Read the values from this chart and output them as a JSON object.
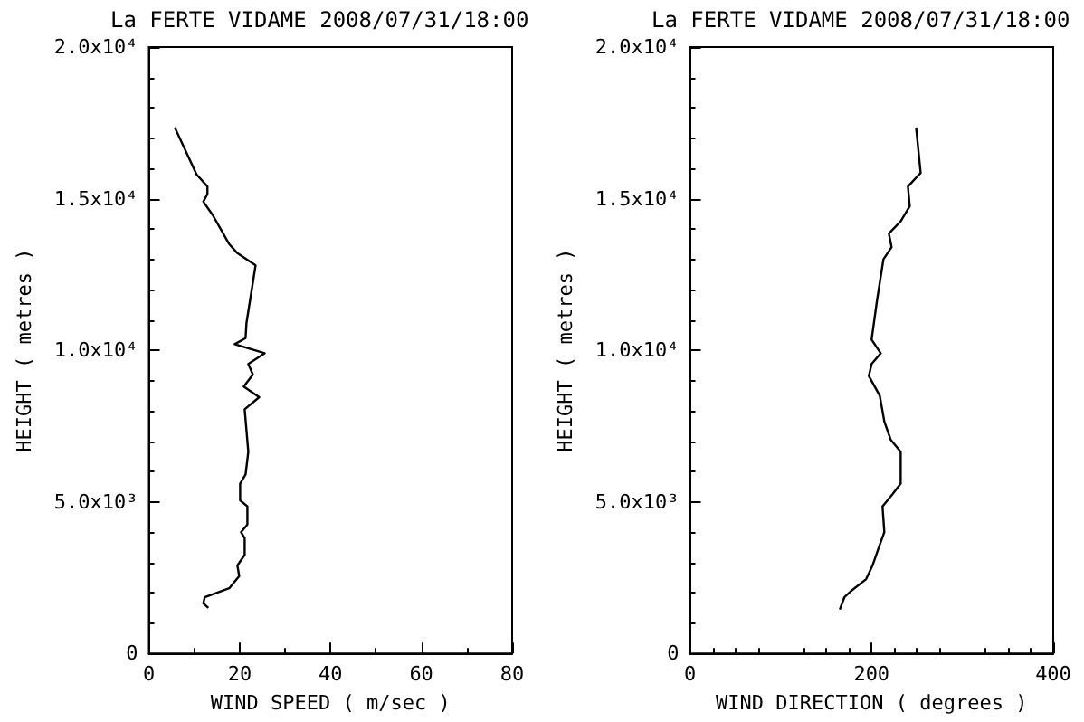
{
  "chart_data": [
    {
      "type": "line",
      "title": "La FERTE VIDAME 2008/07/31/18:00",
      "xlabel": "WIND SPEED ( m/sec )",
      "ylabel": "HEIGHT ( metres )",
      "xlim": [
        0,
        80
      ],
      "xticks": [
        0,
        20,
        40,
        60,
        80
      ],
      "ylim": [
        0,
        20000
      ],
      "yticks": [
        0,
        {
          "value": 5000,
          "label": "5.0x10³"
        },
        {
          "value": 10000,
          "label": "1.0x10⁴"
        },
        {
          "value": 15000,
          "label": "1.5x10⁴"
        },
        {
          "value": 20000,
          "label": "2.0x10⁴"
        }
      ],
      "marker": "none",
      "series": [
        {
          "color": "#000000",
          "x": [
            5.7,
            10.5,
            12.9,
            12.9,
            12.0,
            14.1,
            17.7,
            19.5,
            23.5,
            21.5,
            21.3,
            18.9,
            25.5,
            21.9,
            22.9,
            20.9,
            24.3,
            21.1,
            21.5,
            21.9,
            21.3,
            20.1,
            20.1,
            21.7,
            21.7,
            20.3,
            21.1,
            21.1,
            19.5,
            19.9,
            17.7,
            12.3,
            12.0,
            13.1
          ],
          "values": [
            17350,
            15800,
            15400,
            15150,
            14900,
            14450,
            13500,
            13200,
            12800,
            10900,
            10400,
            10200,
            9900,
            9550,
            9200,
            8800,
            8450,
            8050,
            7350,
            6650,
            5900,
            5600,
            5050,
            4850,
            4250,
            4000,
            3800,
            3250,
            2900,
            2550,
            2150,
            1850,
            1650,
            1500
          ]
        }
      ]
    },
    {
      "type": "line",
      "title": "La FERTE VIDAME 2008/07/31/18:00",
      "xlabel": "WIND DIRECTION ( degrees )",
      "ylabel": "HEIGHT ( metres )",
      "xlim": [
        0,
        400
      ],
      "xticks": [
        0,
        200,
        400
      ],
      "ylim": [
        0,
        20000
      ],
      "yticks": [
        0,
        {
          "value": 5000,
          "label": "5.0x10³"
        },
        {
          "value": 10000,
          "label": "1.0x10⁴"
        },
        {
          "value": 15000,
          "label": "1.5x10⁴"
        },
        {
          "value": 20000,
          "label": "2.0x10⁴"
        }
      ],
      "marker": "none",
      "series": [
        {
          "color": "#000000",
          "x": [
            249,
            254,
            240,
            242,
            232,
            219,
            222,
            213,
            206,
            200,
            210,
            200,
            197,
            209,
            214,
            221,
            232,
            232,
            223,
            212,
            214,
            208,
            201,
            194,
            177,
            170,
            165
          ],
          "values": [
            17350,
            15850,
            15400,
            14750,
            14250,
            13850,
            13400,
            13000,
            11650,
            10350,
            9900,
            9550,
            9150,
            8500,
            7650,
            7050,
            6650,
            5600,
            5250,
            4850,
            4000,
            3500,
            2900,
            2450,
            2050,
            1850,
            1450
          ]
        }
      ]
    }
  ]
}
